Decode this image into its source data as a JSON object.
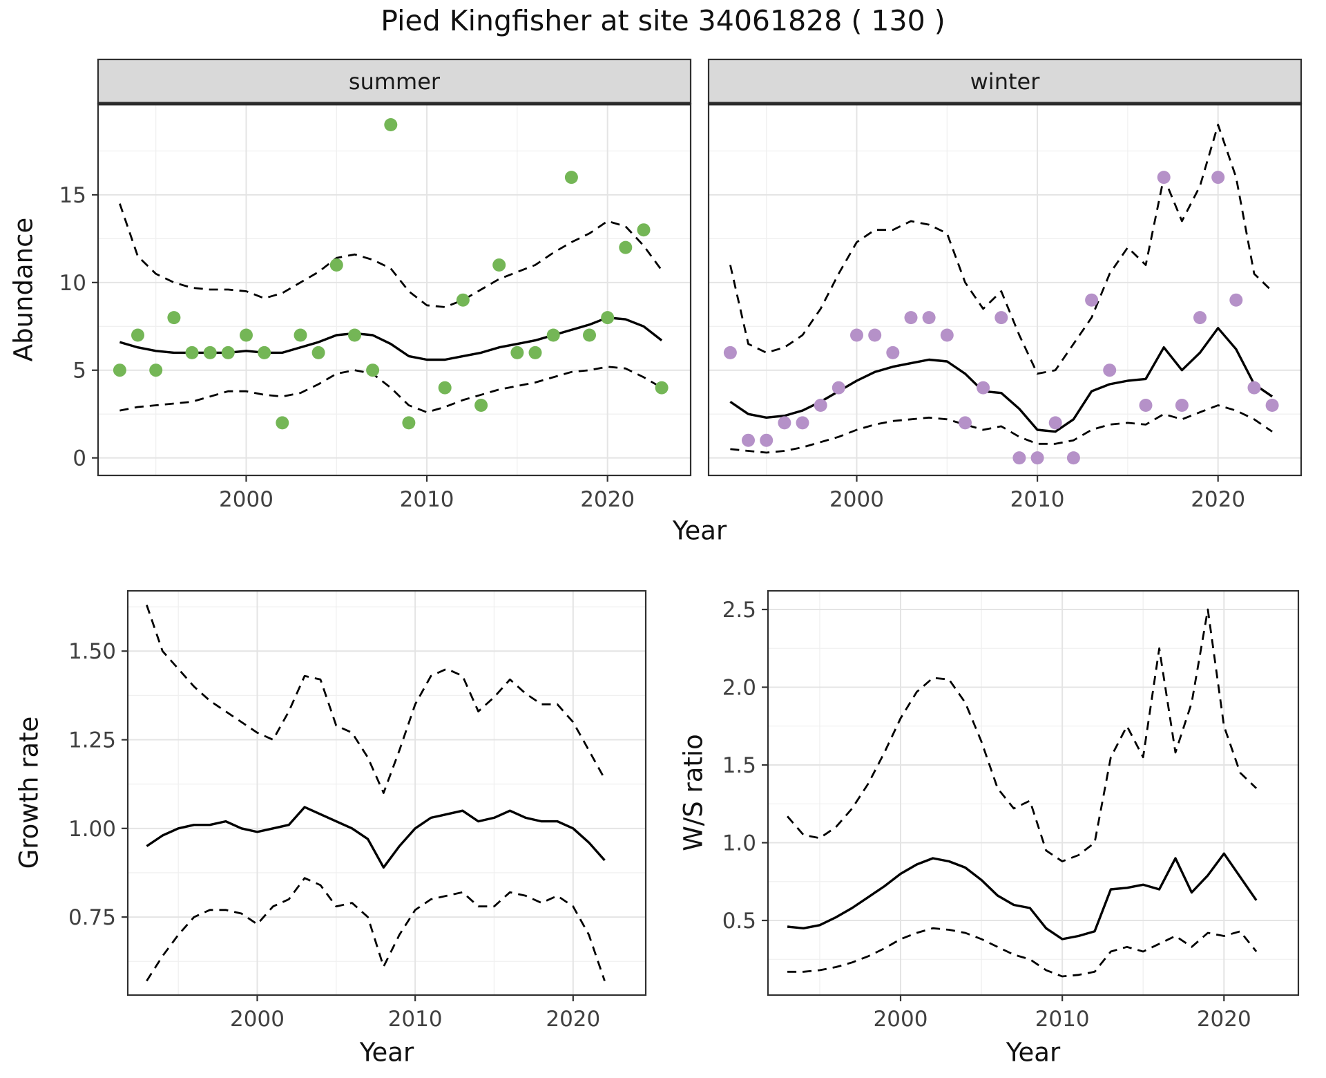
{
  "title": "Pied Kingfisher at site 34061828 ( 130 )",
  "colors": {
    "summer_points": "#74b656",
    "winter_points": "#b591c8",
    "line": "#000000",
    "grid_major": "#e4e4e4",
    "grid_minor": "#f0f0f0",
    "panel_border": "#2f2f2f",
    "strip_fill": "#d9d9d9",
    "tick": "#333333",
    "tick_text": "#404040"
  },
  "chart_data": [
    {
      "id": "abundance-summer",
      "type": "scatter",
      "facet_label": "summer",
      "xlabel": "Year",
      "ylabel": "Abundance",
      "xlim": [
        1991.8,
        2024.6
      ],
      "ylim": [
        -1.0,
        20.2
      ],
      "xticks": [
        2000,
        2010,
        2020
      ],
      "xtick_labels": [
        "2000",
        "2010",
        "2020"
      ],
      "yticks": [
        0,
        5,
        10,
        15
      ],
      "ytick_labels": [
        "0",
        "5",
        "10",
        "15"
      ],
      "points": {
        "color": "#74b656",
        "x": [
          1993,
          1994,
          1995,
          1996,
          1997,
          1998,
          1999,
          2000,
          2001,
          2002,
          2003,
          2004,
          2005,
          2006,
          2007,
          2008,
          2009,
          2011,
          2012,
          2013,
          2014,
          2015,
          2016,
          2017,
          2018,
          2019,
          2020,
          2021,
          2022,
          2023
        ],
        "y": [
          5,
          7,
          5,
          8,
          6,
          6,
          6,
          7,
          6,
          2,
          7,
          6,
          11,
          7,
          5,
          19,
          2,
          4,
          9,
          3,
          11,
          6,
          6,
          7,
          16,
          7,
          8,
          12,
          13,
          4
        ]
      },
      "fit": {
        "x0": 1993,
        "style": "solid",
        "y": [
          6.6,
          6.3,
          6.1,
          6.0,
          6.0,
          6.0,
          6.0,
          6.1,
          6.0,
          6.0,
          6.3,
          6.6,
          7.0,
          7.1,
          7.0,
          6.5,
          5.8,
          5.6,
          5.6,
          5.8,
          6.0,
          6.3,
          6.5,
          6.7,
          7.0,
          7.3,
          7.6,
          8.0,
          7.9,
          7.5,
          6.7
        ]
      },
      "upper": {
        "x0": 1993,
        "style": "dashed",
        "y": [
          14.5,
          11.5,
          10.5,
          10.0,
          9.7,
          9.6,
          9.6,
          9.5,
          9.1,
          9.4,
          10.0,
          10.6,
          11.4,
          11.6,
          11.3,
          10.8,
          9.5,
          8.7,
          8.6,
          9.0,
          9.6,
          10.2,
          10.6,
          11.0,
          11.7,
          12.3,
          12.8,
          13.5,
          13.2,
          12.1,
          10.7
        ]
      },
      "lower": {
        "x0": 1993,
        "style": "dashed",
        "y": [
          2.7,
          2.9,
          3.0,
          3.1,
          3.2,
          3.5,
          3.8,
          3.8,
          3.6,
          3.5,
          3.7,
          4.2,
          4.8,
          5.0,
          4.8,
          4.0,
          3.0,
          2.6,
          2.9,
          3.3,
          3.6,
          3.9,
          4.1,
          4.3,
          4.6,
          4.9,
          5.0,
          5.2,
          5.1,
          4.6,
          4.0
        ]
      }
    },
    {
      "id": "abundance-winter",
      "type": "scatter",
      "facet_label": "winter",
      "xlabel": "Year",
      "ylabel": "Abundance",
      "xlim": [
        1991.8,
        2024.6
      ],
      "ylim": [
        -1.0,
        20.2
      ],
      "xticks": [
        2000,
        2010,
        2020
      ],
      "xtick_labels": [
        "2000",
        "2010",
        "2020"
      ],
      "yticks": [
        0,
        5,
        10,
        15
      ],
      "ytick_labels": [
        "0",
        "5",
        "10",
        "15"
      ],
      "points": {
        "color": "#b591c8",
        "x": [
          1993,
          1994,
          1995,
          1996,
          1997,
          1998,
          1999,
          2000,
          2001,
          2002,
          2003,
          2004,
          2005,
          2006,
          2007,
          2008,
          2009,
          2010,
          2011,
          2012,
          2013,
          2014,
          2016,
          2017,
          2018,
          2019,
          2020,
          2021,
          2022,
          2023
        ],
        "y": [
          6,
          1,
          1,
          2,
          2,
          3,
          4,
          7,
          7,
          6,
          8,
          8,
          7,
          2,
          4,
          8,
          0,
          0,
          2,
          0,
          9,
          5,
          3,
          16,
          3,
          8,
          16,
          9,
          4,
          3
        ]
      },
      "fit": {
        "x0": 1993,
        "style": "solid",
        "y": [
          3.2,
          2.5,
          2.3,
          2.4,
          2.7,
          3.2,
          3.8,
          4.4,
          4.9,
          5.2,
          5.4,
          5.6,
          5.5,
          4.8,
          3.8,
          3.7,
          2.8,
          1.6,
          1.5,
          2.2,
          3.8,
          4.2,
          4.4,
          4.5,
          6.3,
          5.0,
          6.0,
          7.4,
          6.2,
          4.2,
          3.5
        ]
      },
      "upper": {
        "x0": 1993,
        "style": "dashed",
        "y": [
          11.0,
          6.5,
          6.0,
          6.3,
          7.0,
          8.5,
          10.5,
          12.3,
          13.0,
          13.0,
          13.5,
          13.3,
          12.8,
          10.0,
          8.5,
          9.5,
          7.0,
          4.8,
          5.0,
          6.5,
          8.0,
          10.5,
          12.0,
          11.0,
          16.0,
          13.5,
          15.5,
          19.0,
          16.0,
          10.5,
          9.5
        ]
      },
      "lower": {
        "x0": 1993,
        "style": "dashed",
        "y": [
          0.5,
          0.4,
          0.3,
          0.4,
          0.6,
          0.9,
          1.2,
          1.6,
          1.9,
          2.1,
          2.2,
          2.3,
          2.2,
          1.9,
          1.6,
          1.8,
          1.2,
          0.8,
          0.8,
          1.0,
          1.6,
          1.9,
          2.0,
          1.9,
          2.5,
          2.2,
          2.6,
          3.0,
          2.7,
          2.2,
          1.5
        ]
      }
    },
    {
      "id": "growth-rate",
      "type": "line",
      "xlabel": "Year",
      "ylabel": "Growth rate",
      "xlim": [
        1991.8,
        2024.6
      ],
      "ylim": [
        0.53,
        1.67
      ],
      "xticks": [
        2000,
        2010,
        2020
      ],
      "xtick_labels": [
        "2000",
        "2010",
        "2020"
      ],
      "yticks": [
        0.75,
        1.0,
        1.25,
        1.5
      ],
      "ytick_labels": [
        "0.75",
        "1.00",
        "1.25",
        "1.50"
      ],
      "fit": {
        "x0": 1993,
        "style": "solid",
        "y": [
          0.95,
          0.98,
          1.0,
          1.01,
          1.01,
          1.02,
          1.0,
          0.99,
          1.0,
          1.01,
          1.06,
          1.04,
          1.02,
          1.0,
          0.97,
          0.89,
          0.95,
          1.0,
          1.03,
          1.04,
          1.05,
          1.02,
          1.03,
          1.05,
          1.03,
          1.02,
          1.02,
          1.0,
          0.96,
          0.91
        ]
      },
      "upper": {
        "x0": 1993,
        "style": "dashed",
        "y": [
          1.63,
          1.5,
          1.45,
          1.4,
          1.36,
          1.33,
          1.3,
          1.27,
          1.25,
          1.33,
          1.43,
          1.42,
          1.29,
          1.27,
          1.2,
          1.1,
          1.22,
          1.35,
          1.43,
          1.45,
          1.43,
          1.33,
          1.37,
          1.42,
          1.38,
          1.35,
          1.35,
          1.3,
          1.22,
          1.14
        ]
      },
      "lower": {
        "x0": 1993,
        "style": "dashed",
        "y": [
          0.57,
          0.64,
          0.7,
          0.75,
          0.77,
          0.77,
          0.76,
          0.73,
          0.78,
          0.8,
          0.86,
          0.84,
          0.78,
          0.79,
          0.75,
          0.61,
          0.7,
          0.77,
          0.8,
          0.81,
          0.82,
          0.78,
          0.78,
          0.82,
          0.81,
          0.79,
          0.81,
          0.78,
          0.7,
          0.57
        ]
      }
    },
    {
      "id": "ws-ratio",
      "type": "line",
      "xlabel": "Year",
      "ylabel": "W/S ratio",
      "xlim": [
        1991.8,
        2024.6
      ],
      "ylim": [
        0.02,
        2.62
      ],
      "xticks": [
        2000,
        2010,
        2020
      ],
      "xtick_labels": [
        "2000",
        "2010",
        "2020"
      ],
      "yticks": [
        0.5,
        1.0,
        1.5,
        2.0,
        2.5
      ],
      "ytick_labels": [
        "0.5",
        "1.0",
        "1.5",
        "2.0",
        "2.5"
      ],
      "fit": {
        "x0": 1993,
        "style": "solid",
        "y": [
          0.46,
          0.45,
          0.47,
          0.52,
          0.58,
          0.65,
          0.72,
          0.8,
          0.86,
          0.9,
          0.88,
          0.84,
          0.76,
          0.66,
          0.6,
          0.58,
          0.45,
          0.38,
          0.4,
          0.43,
          0.7,
          0.71,
          0.73,
          0.7,
          0.9,
          0.68,
          0.79,
          0.93,
          0.78,
          0.63
        ]
      },
      "upper": {
        "x0": 1993,
        "style": "dashed",
        "y": [
          1.17,
          1.05,
          1.03,
          1.1,
          1.22,
          1.38,
          1.58,
          1.8,
          1.97,
          2.06,
          2.05,
          1.9,
          1.65,
          1.35,
          1.22,
          1.27,
          0.95,
          0.88,
          0.92,
          1.0,
          1.55,
          1.75,
          1.55,
          2.25,
          1.58,
          1.9,
          2.5,
          1.75,
          1.45,
          1.35
        ]
      },
      "lower": {
        "x0": 1993,
        "style": "dashed",
        "y": [
          0.17,
          0.17,
          0.18,
          0.2,
          0.23,
          0.27,
          0.32,
          0.38,
          0.42,
          0.45,
          0.44,
          0.42,
          0.38,
          0.33,
          0.28,
          0.25,
          0.18,
          0.14,
          0.15,
          0.17,
          0.3,
          0.33,
          0.3,
          0.35,
          0.4,
          0.33,
          0.42,
          0.4,
          0.43,
          0.3
        ]
      }
    }
  ]
}
